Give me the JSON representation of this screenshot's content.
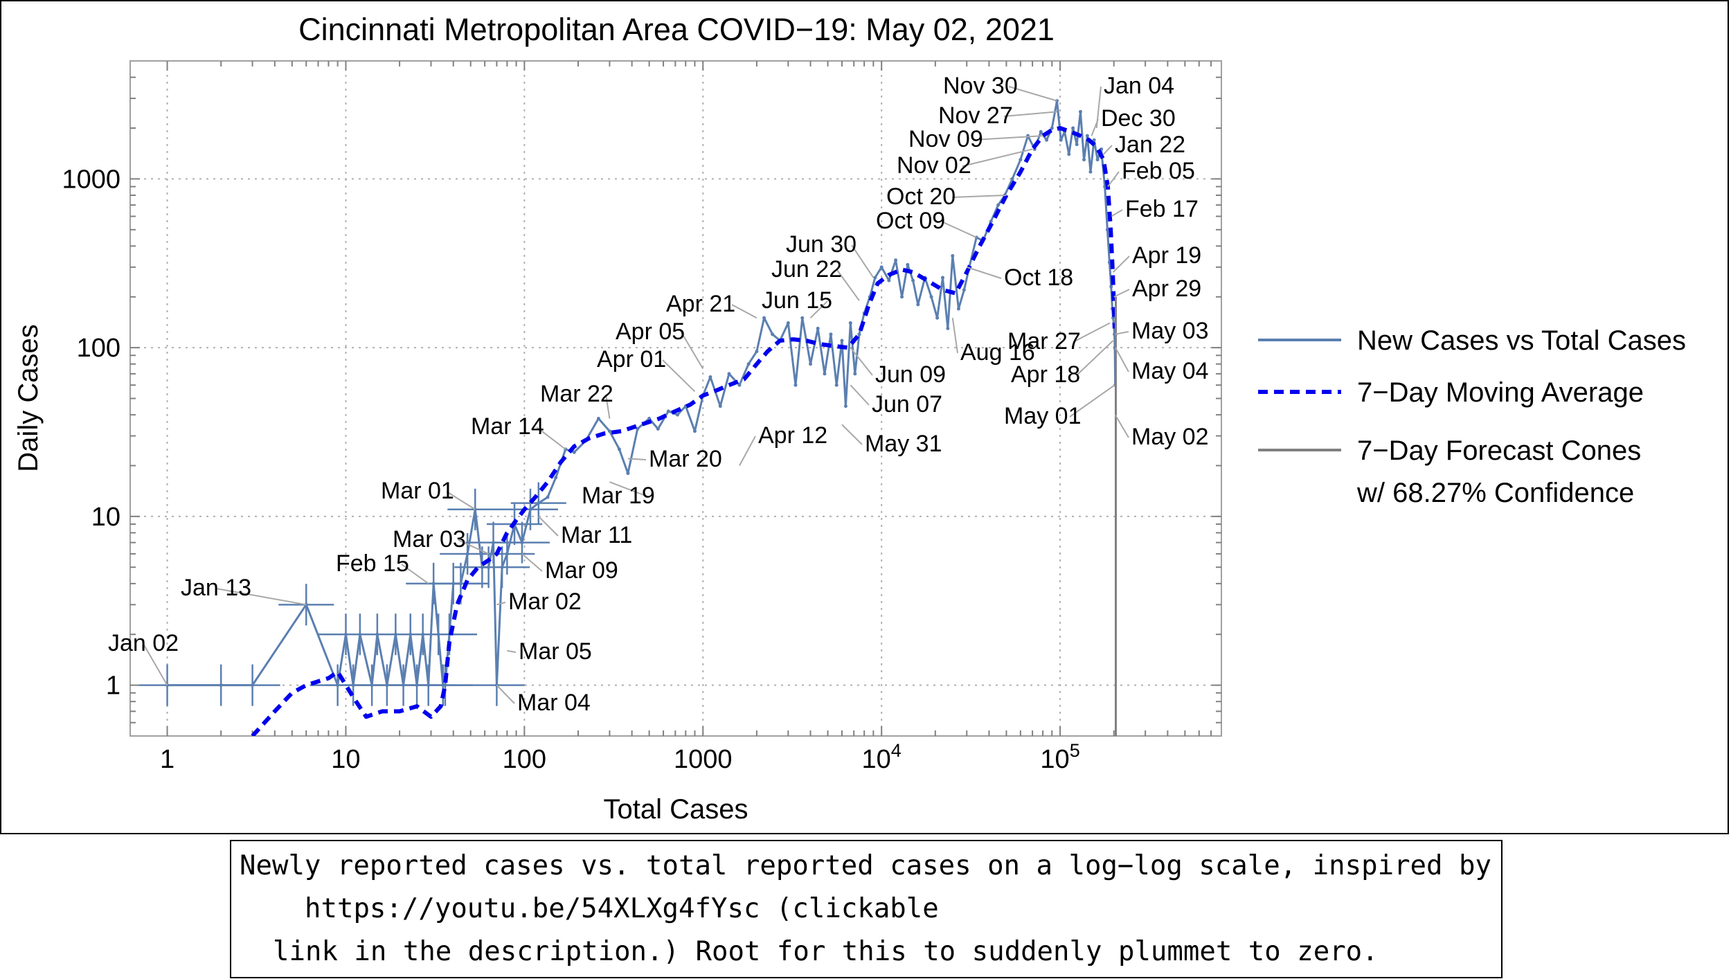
{
  "chart_data": {
    "type": "scatter",
    "title": "Cincinnati Metropolitan Area COVID−19: May 02, 2021",
    "xlabel": "Total Cases",
    "ylabel": "Daily Cases",
    "xscale": "log",
    "yscale": "log",
    "xlim": [
      0.62,
      800000
    ],
    "ylim": [
      0.5,
      5000
    ],
    "grid": true,
    "legend_position": "right",
    "x_ticks": [
      {
        "value": 1,
        "label": "1"
      },
      {
        "value": 10,
        "label": "10"
      },
      {
        "value": 100,
        "label": "100"
      },
      {
        "value": 1000,
        "label": "1000"
      },
      {
        "value": 10000,
        "base": "10",
        "exp": "4"
      },
      {
        "value": 100000,
        "base": "10",
        "exp": "5"
      }
    ],
    "y_ticks": [
      {
        "value": 1,
        "label": "1"
      },
      {
        "value": 10,
        "label": "10"
      },
      {
        "value": 100,
        "label": "100"
      },
      {
        "value": 1000,
        "label": "1000"
      }
    ],
    "series": [
      {
        "name": "New Cases vs Total Cases",
        "color": "#5b7fb0",
        "style": "solid",
        "points": [
          [
            1,
            1
          ],
          [
            2,
            1
          ],
          [
            3,
            1
          ],
          [
            6,
            3
          ],
          [
            9,
            1
          ],
          [
            10,
            2
          ],
          [
            11,
            1
          ],
          [
            12,
            2
          ],
          [
            14,
            1
          ],
          [
            15,
            2
          ],
          [
            17,
            1
          ],
          [
            19,
            2
          ],
          [
            21,
            1
          ],
          [
            23,
            2
          ],
          [
            25,
            1
          ],
          [
            27,
            2
          ],
          [
            29,
            1
          ],
          [
            31,
            4
          ],
          [
            33,
            2
          ],
          [
            35,
            1
          ],
          [
            36,
            1
          ],
          [
            38,
            2
          ],
          [
            40,
            4
          ],
          [
            44,
            4
          ],
          [
            48,
            6
          ],
          [
            53,
            11
          ],
          [
            58,
            5
          ],
          [
            63,
            5
          ],
          [
            67,
            7
          ],
          [
            70,
            1
          ],
          [
            75,
            5
          ],
          [
            80,
            6
          ],
          [
            88,
            9
          ],
          [
            97,
            7
          ],
          [
            108,
            11
          ],
          [
            120,
            12
          ],
          [
            135,
            13
          ],
          [
            150,
            17
          ],
          [
            170,
            25
          ],
          [
            190,
            24
          ],
          [
            220,
            28
          ],
          [
            260,
            38
          ],
          [
            300,
            32
          ],
          [
            340,
            25
          ],
          [
            380,
            18
          ],
          [
            430,
            33
          ],
          [
            500,
            38
          ],
          [
            560,
            33
          ],
          [
            640,
            42
          ],
          [
            720,
            40
          ],
          [
            800,
            45
          ],
          [
            900,
            32
          ],
          [
            1000,
            52
          ],
          [
            1100,
            67
          ],
          [
            1250,
            45
          ],
          [
            1400,
            70
          ],
          [
            1600,
            60
          ],
          [
            1800,
            80
          ],
          [
            2000,
            95
          ],
          [
            2200,
            150
          ],
          [
            2450,
            120
          ],
          [
            2700,
            110
          ],
          [
            3000,
            140
          ],
          [
            3300,
            60
          ],
          [
            3600,
            150
          ],
          [
            4000,
            80
          ],
          [
            4400,
            130
          ],
          [
            4800,
            70
          ],
          [
            5200,
            120
          ],
          [
            5600,
            60
          ],
          [
            6000,
            110
          ],
          [
            6300,
            45
          ],
          [
            6700,
            140
          ],
          [
            7100,
            70
          ],
          [
            7500,
            120
          ],
          [
            8000,
            160
          ],
          [
            8600,
            200
          ],
          [
            9200,
            260
          ],
          [
            10000,
            300
          ],
          [
            11000,
            250
          ],
          [
            12000,
            330
          ],
          [
            13000,
            200
          ],
          [
            14000,
            310
          ],
          [
            15000,
            250
          ],
          [
            16000,
            180
          ],
          [
            17500,
            260
          ],
          [
            19000,
            200
          ],
          [
            20500,
            150
          ],
          [
            22000,
            260
          ],
          [
            23500,
            130
          ],
          [
            25000,
            350
          ],
          [
            27000,
            170
          ],
          [
            29000,
            220
          ],
          [
            31000,
            300
          ],
          [
            34000,
            450
          ],
          [
            37000,
            430
          ],
          [
            41000,
            560
          ],
          [
            45000,
            700
          ],
          [
            49000,
            800
          ],
          [
            54000,
            1000
          ],
          [
            60000,
            1300
          ],
          [
            66000,
            1800
          ],
          [
            72000,
            1500
          ],
          [
            78000,
            1900
          ],
          [
            84000,
            1700
          ],
          [
            90000,
            2000
          ],
          [
            96000,
            2900
          ],
          [
            101000,
            1700
          ],
          [
            106000,
            1900
          ],
          [
            112000,
            1400
          ],
          [
            118000,
            2000
          ],
          [
            124000,
            1600
          ],
          [
            130000,
            2500
          ],
          [
            136000,
            1300
          ],
          [
            142000,
            1800
          ],
          [
            148000,
            1100
          ],
          [
            155000,
            1700
          ],
          [
            162000,
            1300
          ],
          [
            170000,
            1500
          ],
          [
            178000,
            900
          ],
          [
            184000,
            500
          ],
          [
            189000,
            320
          ],
          [
            193000,
            230
          ],
          [
            196000,
            170
          ],
          [
            198000,
            150
          ],
          [
            200000,
            140
          ],
          [
            201500,
            120
          ],
          [
            202500,
            100
          ],
          [
            203500,
            60
          ],
          [
            204500,
            120
          ]
        ]
      },
      {
        "name": "7−Day Moving Average",
        "color": "#0000ee",
        "style": "dashed",
        "points": [
          [
            3,
            0.5
          ],
          [
            4,
            0.7
          ],
          [
            5,
            0.9
          ],
          [
            6,
            1.0
          ],
          [
            8,
            1.1
          ],
          [
            9,
            1.2
          ],
          [
            11,
            0.85
          ],
          [
            13,
            0.65
          ],
          [
            16,
            0.7
          ],
          [
            20,
            0.7
          ],
          [
            25,
            0.75
          ],
          [
            30,
            0.65
          ],
          [
            34,
            0.75
          ],
          [
            36,
            1.0
          ],
          [
            38,
            1.8
          ],
          [
            42,
            3.0
          ],
          [
            48,
            4.2
          ],
          [
            55,
            5.0
          ],
          [
            63,
            5.5
          ],
          [
            70,
            6.0
          ],
          [
            80,
            8.0
          ],
          [
            90,
            9.5
          ],
          [
            100,
            11
          ],
          [
            115,
            13
          ],
          [
            135,
            16
          ],
          [
            160,
            21
          ],
          [
            190,
            26
          ],
          [
            230,
            29
          ],
          [
            280,
            31
          ],
          [
            350,
            32
          ],
          [
            450,
            35
          ],
          [
            570,
            38
          ],
          [
            700,
            42
          ],
          [
            850,
            46
          ],
          [
            1000,
            52
          ],
          [
            1200,
            56
          ],
          [
            1400,
            60
          ],
          [
            1700,
            65
          ],
          [
            2000,
            80
          ],
          [
            2300,
            95
          ],
          [
            2700,
            110
          ],
          [
            3200,
            112
          ],
          [
            3800,
            110
          ],
          [
            4500,
            105
          ],
          [
            5500,
            102
          ],
          [
            6500,
            100
          ],
          [
            7500,
            120
          ],
          [
            8500,
            180
          ],
          [
            9500,
            240
          ],
          [
            11000,
            270
          ],
          [
            13000,
            290
          ],
          [
            15000,
            280
          ],
          [
            18000,
            250
          ],
          [
            22000,
            220
          ],
          [
            26000,
            210
          ],
          [
            30000,
            280
          ],
          [
            35000,
            390
          ],
          [
            42000,
            560
          ],
          [
            50000,
            800
          ],
          [
            60000,
            1100
          ],
          [
            70000,
            1500
          ],
          [
            80000,
            1800
          ],
          [
            90000,
            1950
          ],
          [
            100000,
            2000
          ],
          [
            115000,
            1900
          ],
          [
            130000,
            1800
          ],
          [
            145000,
            1700
          ],
          [
            160000,
            1550
          ],
          [
            175000,
            1300
          ],
          [
            185000,
            900
          ],
          [
            192000,
            500
          ],
          [
            197000,
            280
          ],
          [
            200000,
            180
          ],
          [
            202000,
            130
          ]
        ]
      },
      {
        "name": "7−Day Forecast Cones",
        "name2": "w/ 68.27% Confidence",
        "color": "#808080",
        "style": "solid",
        "x": 205000,
        "y_range": [
          0.5,
          200
        ]
      }
    ],
    "annotations": [
      {
        "text": "Jan 02",
        "x": 1,
        "y": 1
      },
      {
        "text": "Jan 13",
        "x": 6,
        "y": 3
      },
      {
        "text": "Feb 15",
        "x": 29,
        "y": 4
      },
      {
        "text": "Mar 01",
        "x": 53,
        "y": 11
      },
      {
        "text": "Mar 03",
        "x": 63,
        "y": 6
      },
      {
        "text": "Mar 02",
        "x": 70,
        "y": 3
      },
      {
        "text": "Mar 05",
        "x": 80,
        "y": 1.6
      },
      {
        "text": "Mar 04",
        "x": 70,
        "y": 1
      },
      {
        "text": "Mar 09",
        "x": 97,
        "y": 6
      },
      {
        "text": "Mar 11",
        "x": 120,
        "y": 10
      },
      {
        "text": "Mar 14",
        "x": 170,
        "y": 25
      },
      {
        "text": "Mar 19",
        "x": 300,
        "y": 16
      },
      {
        "text": "Mar 20",
        "x": 380,
        "y": 22
      },
      {
        "text": "Mar 22",
        "x": 300,
        "y": 38
      },
      {
        "text": "Apr 01",
        "x": 900,
        "y": 55
      },
      {
        "text": "Apr 05",
        "x": 1000,
        "y": 75
      },
      {
        "text": "Apr 12",
        "x": 1600,
        "y": 20
      },
      {
        "text": "Apr 21",
        "x": 2000,
        "y": 150
      },
      {
        "text": "Jun 15",
        "x": 4000,
        "y": 150
      },
      {
        "text": "Jun 22",
        "x": 7500,
        "y": 190
      },
      {
        "text": "Jun 30",
        "x": 9000,
        "y": 260
      },
      {
        "text": "Jun 09",
        "x": 6700,
        "y": 100
      },
      {
        "text": "Jun 07",
        "x": 6700,
        "y": 60
      },
      {
        "text": "May 31",
        "x": 6000,
        "y": 35
      },
      {
        "text": "Oct 09",
        "x": 34000,
        "y": 450
      },
      {
        "text": "Oct 20",
        "x": 50000,
        "y": 800
      },
      {
        "text": "Oct 18",
        "x": 30000,
        "y": 300
      },
      {
        "text": "Aug 16",
        "x": 25000,
        "y": 150
      },
      {
        "text": "Nov 02",
        "x": 70000,
        "y": 1500
      },
      {
        "text": "Nov 09",
        "x": 80000,
        "y": 1800
      },
      {
        "text": "Nov 27",
        "x": 96000,
        "y": 2500
      },
      {
        "text": "Nov 30",
        "x": 96000,
        "y": 2900
      },
      {
        "text": "Jan 04",
        "x": 160000,
        "y": 2000
      },
      {
        "text": "Dec 30",
        "x": 150000,
        "y": 1800
      },
      {
        "text": "Jan 22",
        "x": 175000,
        "y": 1400
      },
      {
        "text": "Feb 05",
        "x": 185000,
        "y": 900
      },
      {
        "text": "Feb 17",
        "x": 194000,
        "y": 600
      },
      {
        "text": "Apr 19",
        "x": 198000,
        "y": 280
      },
      {
        "text": "Apr 29",
        "x": 200000,
        "y": 200
      },
      {
        "text": "Mar 27",
        "x": 190000,
        "y": 140
      },
      {
        "text": "Apr 18",
        "x": 198000,
        "y": 110
      },
      {
        "text": "May 03",
        "x": 203000,
        "y": 120
      },
      {
        "text": "May 04",
        "x": 204000,
        "y": 100
      },
      {
        "text": "May 01",
        "x": 202000,
        "y": 60
      },
      {
        "text": "May 02",
        "x": 203500,
        "y": 40
      }
    ]
  },
  "caption": {
    "line1": "Newly reported cases vs. total reported cases on a log−log scale, inspired by",
    "link": "https://youtu.be/54XLXg4fYsc",
    "link_suffix": " (clickable",
    "line3": "link in the description.) Root for this to suddenly plummet to zero."
  }
}
